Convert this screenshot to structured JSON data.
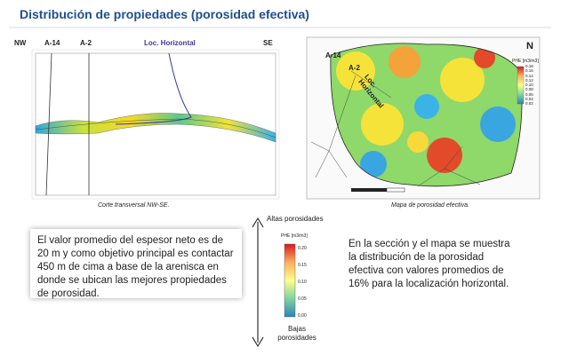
{
  "header": {
    "title": "Distribución de propiedades (porosidad efectiva)"
  },
  "section": {
    "labels": [
      "NW",
      "A-14",
      "A-2",
      "Loc. Horizontal",
      "SE"
    ],
    "caption": "Corte transversal NW-SE."
  },
  "map": {
    "wells": [
      "A-14",
      "A-2"
    ],
    "horizontal": "Loc. Horizontal",
    "north": "N",
    "legend_title": "PHE [m3/m3]",
    "legend_ticks": [
      "0.18",
      "0.16",
      "0.14",
      "0.12",
      "0.10",
      "0.08",
      "0.06",
      "0.04",
      "0.02"
    ],
    "caption": "Mapa de porosidad efectiva."
  },
  "scale": {
    "top": "Altas porosidades",
    "title": "PHE [m3/m3]",
    "ticks": [
      "0.20",
      "0.15",
      "0.10",
      "0.05",
      "0.00"
    ],
    "bottom": "Bajas porosidades"
  },
  "text_left": "El valor promedio del espesor neto es de 20 m y como objetivo principal es contactar 450 m de cima a base de la arenisca en donde se ubican las mejores propiedades de porosidad.",
  "text_right": "En la sección y el mapa se muestra la distribución de la porosidad efectiva con valores promedios de 16% para la localización horizontal."
}
